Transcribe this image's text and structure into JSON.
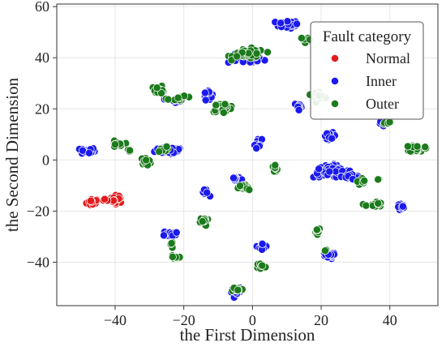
{
  "chart_data": {
    "type": "scatter",
    "xlabel": "the First Dimension",
    "ylabel": "the Second Dimension",
    "xlim": [
      -57,
      54
    ],
    "ylim": [
      -57,
      61
    ],
    "xticks": [
      "-40",
      "-20",
      "0",
      "20",
      "40"
    ],
    "yticks": [
      "60",
      "40",
      "20",
      "0",
      "-20",
      "-40"
    ],
    "grid": true,
    "legend": {
      "title": "Fault category",
      "placement": "top-right",
      "entries": [
        "Normal",
        "Inner",
        "Outer"
      ]
    },
    "series": [
      {
        "name": "Normal",
        "color": "#e31a1c",
        "clusters": [
          {
            "cx": -46.5,
            "cy": -16.5,
            "sx": 1.2,
            "sy": 1.0,
            "n": 18
          },
          {
            "cx": -39.5,
            "cy": -15.3,
            "sx": 1.3,
            "sy": 1.0,
            "n": 18
          },
          {
            "cx": -42.5,
            "cy": -15.8,
            "sx": 0.6,
            "sy": 0.4,
            "n": 3
          }
        ]
      },
      {
        "name": "Inner",
        "color": "#1a1aee",
        "clusters": [
          {
            "cx": 10,
            "cy": 53,
            "sx": 2.2,
            "sy": 1.0,
            "n": 30
          },
          {
            "cx": -2,
            "cy": 39.5,
            "sx": 3.5,
            "sy": 1.2,
            "n": 40
          },
          {
            "cx": -48,
            "cy": 3.5,
            "sx": 1.4,
            "sy": 0.9,
            "n": 20
          },
          {
            "cx": -24,
            "cy": 4,
            "sx": 2.8,
            "sy": 1.2,
            "n": 35
          },
          {
            "cx": -22.5,
            "cy": 23,
            "sx": 1.2,
            "sy": 0.8,
            "n": 12
          },
          {
            "cx": -13,
            "cy": 26,
            "sx": 0.8,
            "sy": 1.5,
            "n": 16
          },
          {
            "cx": -14,
            "cy": -13,
            "sx": 0.8,
            "sy": 0.8,
            "n": 10
          },
          {
            "cx": -24,
            "cy": -29,
            "sx": 1.2,
            "sy": 1.0,
            "n": 18
          },
          {
            "cx": -5,
            "cy": -7.5,
            "sx": 0.9,
            "sy": 0.8,
            "n": 10
          },
          {
            "cx": 1.5,
            "cy": 6.5,
            "sx": 0.8,
            "sy": 1.2,
            "n": 14
          },
          {
            "cx": 3,
            "cy": -34,
            "sx": 0.8,
            "sy": 1.0,
            "n": 12
          },
          {
            "cx": -4.5,
            "cy": -51.5,
            "sx": 1.1,
            "sy": 0.9,
            "n": 16
          },
          {
            "cx": 13.5,
            "cy": 21,
            "sx": 0.8,
            "sy": 0.9,
            "n": 12
          },
          {
            "cx": 22.5,
            "cy": 9.5,
            "sx": 1.2,
            "sy": 0.8,
            "n": 12
          },
          {
            "cx": 23,
            "cy": -4.5,
            "sx": 3.5,
            "sy": 1.6,
            "n": 55
          },
          {
            "cx": 29,
            "cy": -6.5,
            "sx": 2.0,
            "sy": 0.9,
            "n": 25
          },
          {
            "cx": 22,
            "cy": -37.5,
            "sx": 1.5,
            "sy": 0.9,
            "n": 22
          },
          {
            "cx": 43.5,
            "cy": -18.5,
            "sx": 0.9,
            "sy": 0.9,
            "n": 12
          },
          {
            "cx": 37.5,
            "cy": 14,
            "sx": 0.6,
            "sy": 0.6,
            "n": 6
          }
        ]
      },
      {
        "name": "Outer",
        "color": "#1b7a1b",
        "clusters": [
          {
            "cx": -1,
            "cy": 41.5,
            "sx": 3.0,
            "sy": 1.3,
            "n": 40
          },
          {
            "cx": 16,
            "cy": 47,
            "sx": 0.8,
            "sy": 0.9,
            "n": 10
          },
          {
            "cx": -27.5,
            "cy": 27.5,
            "sx": 1.3,
            "sy": 1.0,
            "n": 16
          },
          {
            "cx": -21,
            "cy": 24,
            "sx": 2.5,
            "sy": 0.6,
            "n": 10
          },
          {
            "cx": -8.5,
            "cy": 20.5,
            "sx": 2.2,
            "sy": 1.1,
            "n": 28
          },
          {
            "cx": 19,
            "cy": 25.5,
            "sx": 1.3,
            "sy": 1.0,
            "n": 14
          },
          {
            "cx": -39.5,
            "cy": 6,
            "sx": 1.1,
            "sy": 0.9,
            "n": 14
          },
          {
            "cx": -36,
            "cy": 3.5,
            "sx": 0.6,
            "sy": 0.4,
            "n": 4
          },
          {
            "cx": -31,
            "cy": -0.5,
            "sx": 1.0,
            "sy": 0.9,
            "n": 12
          },
          {
            "cx": -26.5,
            "cy": 4,
            "sx": 1.0,
            "sy": 0.8,
            "n": 8
          },
          {
            "cx": 6.5,
            "cy": -3.5,
            "sx": 0.7,
            "sy": 1.2,
            "n": 12
          },
          {
            "cx": -2.5,
            "cy": -11,
            "sx": 1.1,
            "sy": 1.0,
            "n": 14
          },
          {
            "cx": -14,
            "cy": -24,
            "sx": 0.8,
            "sy": 1.2,
            "n": 12
          },
          {
            "cx": -22.5,
            "cy": -38,
            "sx": 1.0,
            "sy": 0.9,
            "n": 16
          },
          {
            "cx": -23.5,
            "cy": -33.5,
            "sx": 0.4,
            "sy": 1.2,
            "n": 5
          },
          {
            "cx": 2.5,
            "cy": -41.5,
            "sx": 0.8,
            "sy": 0.9,
            "n": 12
          },
          {
            "cx": -4.5,
            "cy": -50.5,
            "sx": 1.3,
            "sy": 0.6,
            "n": 12
          },
          {
            "cx": 19,
            "cy": -27.5,
            "sx": 0.6,
            "sy": 0.8,
            "n": 8
          },
          {
            "cx": 21,
            "cy": -35.5,
            "sx": 0.4,
            "sy": 0.5,
            "n": 3
          },
          {
            "cx": 32,
            "cy": -8.5,
            "sx": 1.0,
            "sy": 0.9,
            "n": 14
          },
          {
            "cx": 36.5,
            "cy": -7.5,
            "sx": 0.3,
            "sy": 0.3,
            "n": 2
          },
          {
            "cx": 35.5,
            "cy": -17.5,
            "sx": 1.5,
            "sy": 0.8,
            "n": 16
          },
          {
            "cx": 48,
            "cy": 4.5,
            "sx": 1.4,
            "sy": 1.0,
            "n": 22
          },
          {
            "cx": 39,
            "cy": 15,
            "sx": 0.7,
            "sy": 0.6,
            "n": 8
          }
        ]
      }
    ]
  }
}
